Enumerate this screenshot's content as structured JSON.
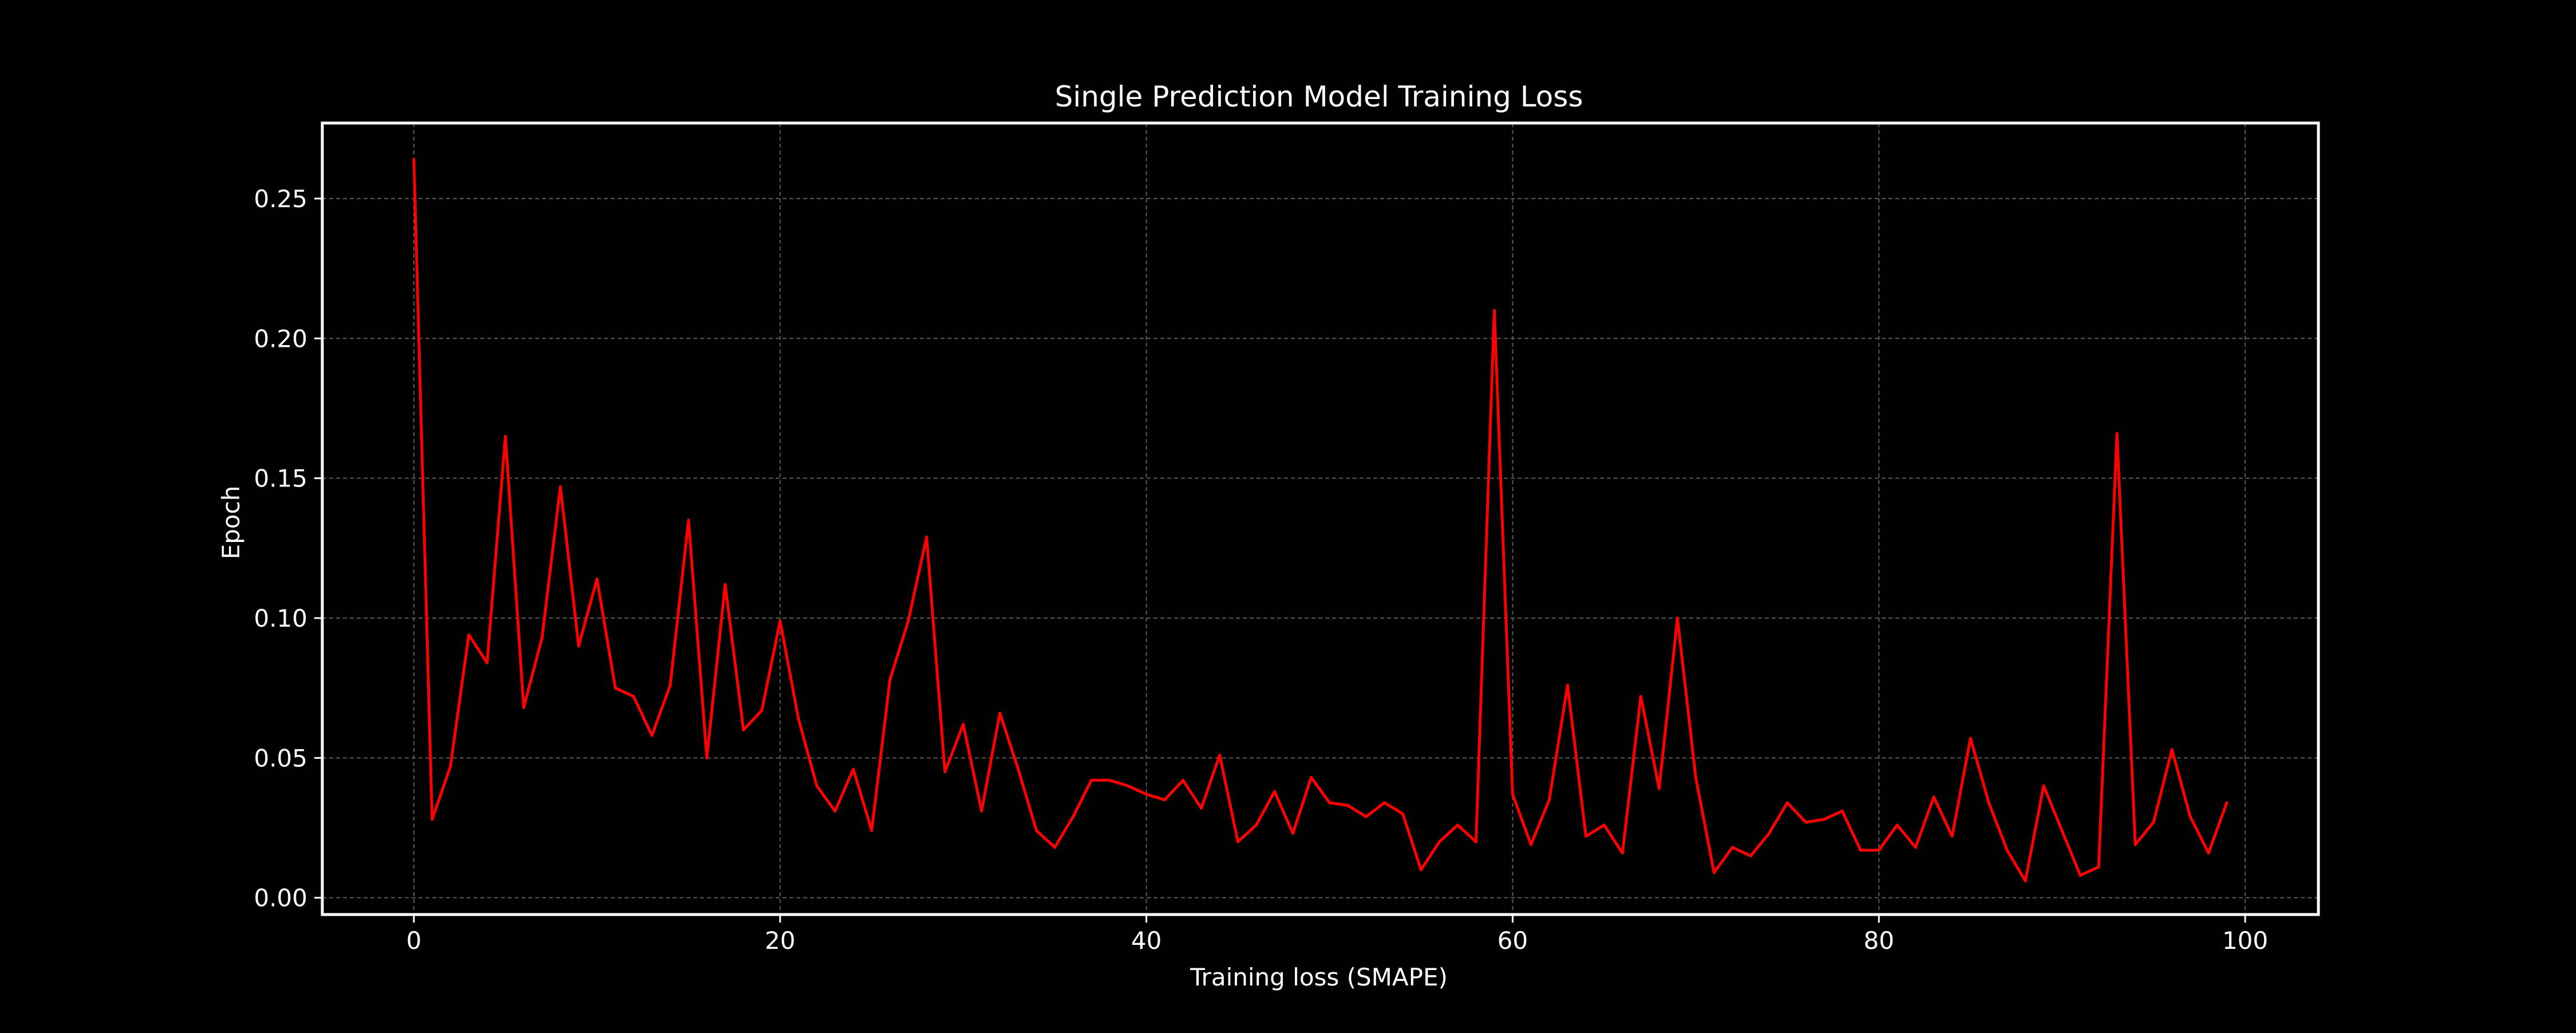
{
  "chart_data": {
    "type": "line",
    "title": "Single Prediction Model Training Loss",
    "xlabel": "Training loss (SMAPE)",
    "ylabel": "Epoch",
    "xlim": [
      -5,
      104
    ],
    "ylim": [
      -0.006,
      0.277
    ],
    "x_ticks": [
      0,
      20,
      40,
      60,
      80,
      100
    ],
    "x_tick_labels": [
      "0",
      "20",
      "40",
      "60",
      "80",
      "100"
    ],
    "y_ticks": [
      0.0,
      0.05,
      0.1,
      0.15,
      0.2,
      0.25
    ],
    "y_tick_labels": [
      "0.00",
      "0.05",
      "0.10",
      "0.15",
      "0.20",
      "0.25"
    ],
    "grid": true,
    "legend": "none",
    "series": [
      {
        "color": "#ff0000",
        "x": [
          0,
          1,
          2,
          3,
          4,
          5,
          6,
          7,
          8,
          9,
          10,
          11,
          12,
          13,
          14,
          15,
          16,
          17,
          18,
          19,
          20,
          21,
          22,
          23,
          24,
          25,
          26,
          27,
          28,
          29,
          30,
          31,
          32,
          33,
          34,
          35,
          36,
          37,
          38,
          39,
          40,
          41,
          42,
          43,
          44,
          45,
          46,
          47,
          48,
          49,
          50,
          51,
          52,
          53,
          54,
          55,
          56,
          57,
          58,
          59,
          60,
          61,
          62,
          63,
          64,
          65,
          66,
          67,
          68,
          69,
          70,
          71,
          72,
          73,
          74,
          75,
          76,
          77,
          78,
          79,
          80,
          81,
          82,
          83,
          84,
          85,
          86,
          87,
          88,
          89,
          90,
          91,
          92,
          93,
          94,
          95,
          96,
          97,
          98,
          99
        ],
        "values": [
          0.264,
          0.028,
          0.047,
          0.094,
          0.084,
          0.165,
          0.068,
          0.093,
          0.147,
          0.09,
          0.114,
          0.075,
          0.072,
          0.058,
          0.076,
          0.135,
          0.05,
          0.112,
          0.06,
          0.067,
          0.099,
          0.064,
          0.04,
          0.031,
          0.046,
          0.024,
          0.078,
          0.099,
          0.129,
          0.045,
          0.062,
          0.031,
          0.066,
          0.046,
          0.024,
          0.018,
          0.029,
          0.042,
          0.042,
          0.04,
          0.037,
          0.035,
          0.042,
          0.032,
          0.051,
          0.02,
          0.026,
          0.038,
          0.023,
          0.043,
          0.034,
          0.033,
          0.029,
          0.034,
          0.03,
          0.01,
          0.02,
          0.026,
          0.02,
          0.21,
          0.037,
          0.019,
          0.035,
          0.076,
          0.022,
          0.026,
          0.016,
          0.072,
          0.039,
          0.1,
          0.043,
          0.009,
          0.018,
          0.015,
          0.023,
          0.034,
          0.027,
          0.028,
          0.031,
          0.017,
          0.017,
          0.026,
          0.018,
          0.036,
          0.022,
          0.057,
          0.034,
          0.017,
          0.006,
          0.04,
          0.024,
          0.008,
          0.011,
          0.166,
          0.019,
          0.027,
          0.053,
          0.029,
          0.016,
          0.034
        ]
      }
    ]
  }
}
